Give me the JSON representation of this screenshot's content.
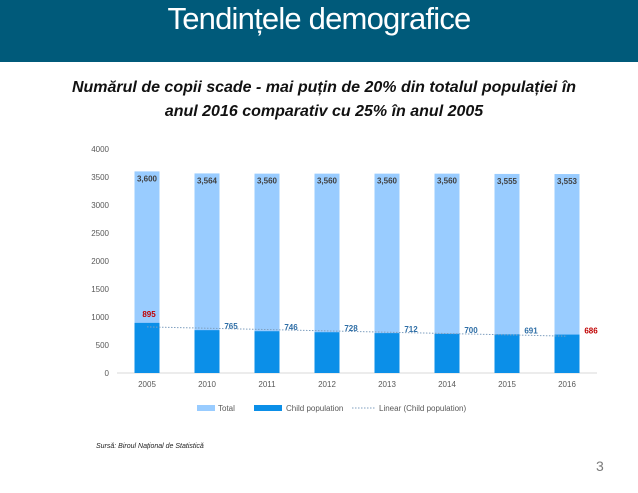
{
  "slide": {
    "title": "Tendințele demografice",
    "subtitle_line1": "Numărul de copii scade - mai puțin de 20% din totalul populației în",
    "subtitle_line2": "anul 2016 comparativ cu 25% în anul 2005",
    "source": "Sursă: Biroul Național de Statistică",
    "page_number": "3"
  },
  "colors": {
    "banner": "#005a7a",
    "total": "#99ccff",
    "child": "#0b8fe8",
    "trend": "#7f9fbf",
    "highlight_label": "#c00000",
    "child_label": "#2e6ea6"
  },
  "chart_data": {
    "type": "bar",
    "categories": [
      "2005",
      "2010",
      "2011",
      "2012",
      "2013",
      "2014",
      "2015",
      "2016"
    ],
    "series": [
      {
        "name": "Total",
        "values": [
          3600,
          3564,
          3560,
          3560,
          3560,
          3560,
          3555,
          3553
        ],
        "labels": [
          "3,600",
          "3,564",
          "3,560",
          "3,560",
          "3,560",
          "3,560",
          "3,555",
          "3,553"
        ]
      },
      {
        "name": "Child population",
        "values": [
          895,
          765,
          746,
          728,
          712,
          700,
          691,
          686
        ],
        "labels": [
          "895",
          "765",
          "746",
          "728",
          "712",
          "700",
          "691",
          "686"
        ],
        "highlighted": [
          "2005",
          "2016"
        ]
      }
    ],
    "trendline": {
      "name": "Linear (Child population)",
      "type": "linear",
      "of": "Child population"
    },
    "ylim": [
      0,
      4000
    ],
    "yticks": [
      0,
      500,
      1000,
      1500,
      2000,
      2500,
      3000,
      3500,
      4000
    ],
    "ytick_labels": [
      "0",
      "500",
      "1000",
      "1500",
      "2000",
      "2500",
      "3000",
      "3500",
      "4000"
    ],
    "grid": false,
    "legend_position": "bottom"
  }
}
